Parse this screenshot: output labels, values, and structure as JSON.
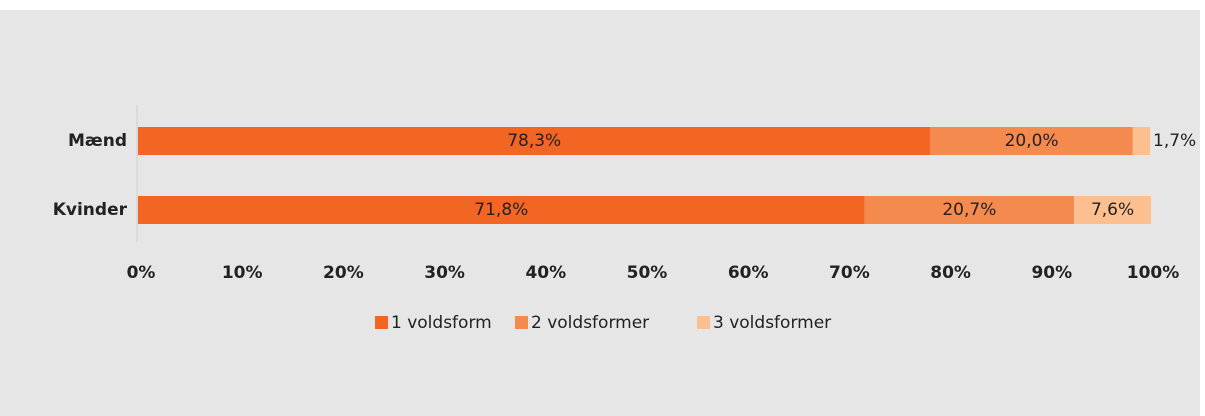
{
  "chart_data": {
    "type": "stacked_barh",
    "categories": [
      "Mænd",
      "Kvinder"
    ],
    "series": [
      {
        "name": "1 voldsform",
        "color": "#f26522",
        "values": [
          78.3,
          71.8
        ],
        "value_labels": [
          "78,3%",
          "71,8%"
        ]
      },
      {
        "name": "2 voldsformer",
        "color": "#f58a4e",
        "values": [
          20.0,
          20.7
        ],
        "value_labels": [
          "20,0%",
          "20,7%"
        ]
      },
      {
        "name": "3 voldsformer",
        "color": "#fbbf90",
        "values": [
          1.7,
          7.6
        ],
        "value_labels": [
          "1,7%",
          "7,6%"
        ]
      }
    ],
    "xlim": [
      0,
      100
    ],
    "xticks": [
      {
        "value": 0,
        "label": "0%"
      },
      {
        "value": 10,
        "label": "10%"
      },
      {
        "value": 20,
        "label": "20%"
      },
      {
        "value": 30,
        "label": "30%"
      },
      {
        "value": 40,
        "label": "40%"
      },
      {
        "value": 50,
        "label": "50%"
      },
      {
        "value": 60,
        "label": "60%"
      },
      {
        "value": 70,
        "label": "70%"
      },
      {
        "value": 80,
        "label": "80%"
      },
      {
        "value": 90,
        "label": "90%"
      },
      {
        "value": 100,
        "label": "100%"
      }
    ],
    "legend": "bottom"
  }
}
